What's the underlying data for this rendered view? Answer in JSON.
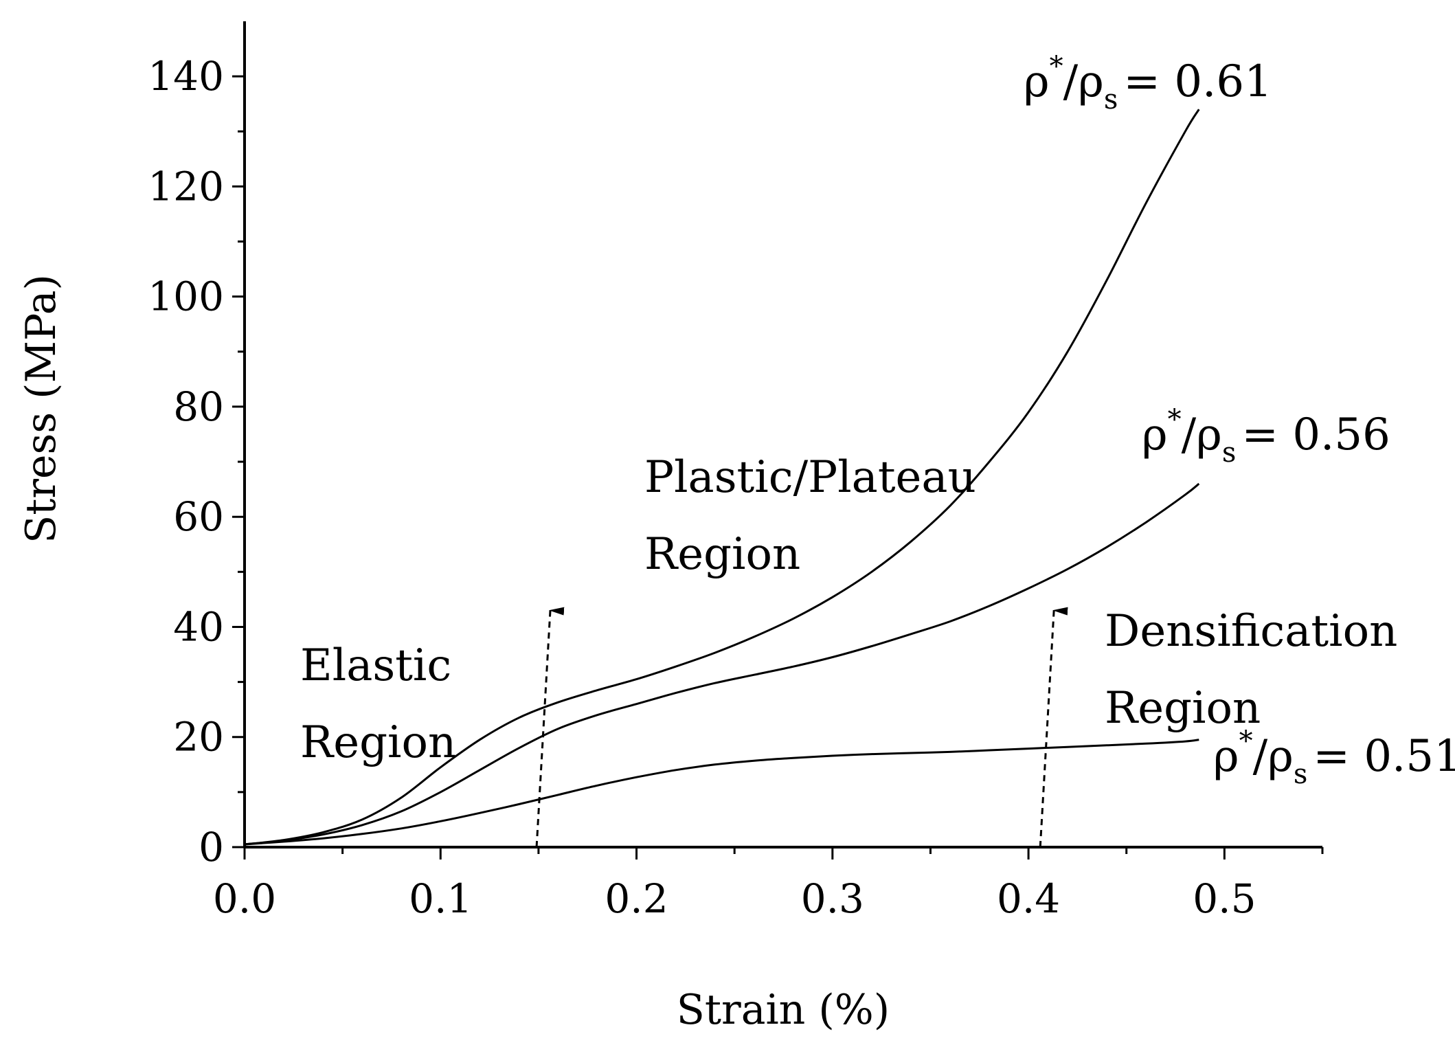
{
  "chart_data": {
    "type": "line",
    "xlabel": "Strain (%)",
    "ylabel": "Stress (MPa)",
    "xlim": [
      0,
      0.55
    ],
    "ylim": [
      0,
      150
    ],
    "x_ticks": [
      0.0,
      0.1,
      0.2,
      0.3,
      0.4,
      0.5
    ],
    "x_tick_labels": [
      "0.0",
      "0.1",
      "0.2",
      "0.3",
      "0.4",
      "0.5"
    ],
    "y_ticks": [
      0,
      20,
      40,
      60,
      80,
      100,
      120,
      140
    ],
    "y_tick_labels": [
      "0",
      "20",
      "40",
      "60",
      "80",
      "100",
      "120",
      "140"
    ],
    "grid": false,
    "legend": "none",
    "series": [
      {
        "label": {
          "base": "ρ",
          "sup": "*",
          "mid": "/ρ",
          "sub": "s",
          "value": "= 0.61"
        },
        "x": [
          0.0,
          0.02,
          0.04,
          0.06,
          0.08,
          0.1,
          0.12,
          0.14,
          0.16,
          0.18,
          0.2,
          0.22,
          0.24,
          0.26,
          0.28,
          0.3,
          0.32,
          0.34,
          0.36,
          0.38,
          0.4,
          0.42,
          0.44,
          0.46,
          0.48,
          0.487
        ],
        "y": [
          0.5,
          1.3,
          2.7,
          5.0,
          9.0,
          14.5,
          19.5,
          23.5,
          26.3,
          28.5,
          30.5,
          32.8,
          35.3,
          38.2,
          41.5,
          45.4,
          50.0,
          55.5,
          62.0,
          70.0,
          79.0,
          90.0,
          103.0,
          117.0,
          130.0,
          134.0
        ]
      },
      {
        "label": {
          "base": "ρ",
          "sup": "*",
          "mid": "/ρ",
          "sub": "s",
          "value": "= 0.56"
        },
        "x": [
          0.0,
          0.02,
          0.04,
          0.06,
          0.08,
          0.1,
          0.12,
          0.14,
          0.16,
          0.18,
          0.2,
          0.22,
          0.24,
          0.26,
          0.28,
          0.3,
          0.32,
          0.34,
          0.36,
          0.38,
          0.4,
          0.42,
          0.44,
          0.46,
          0.48,
          0.487
        ],
        "y": [
          0.5,
          1.2,
          2.3,
          4.0,
          6.5,
          10.0,
          14.0,
          18.0,
          21.5,
          24.0,
          26.0,
          28.0,
          29.8,
          31.3,
          32.8,
          34.5,
          36.5,
          38.7,
          41.0,
          43.8,
          47.0,
          50.5,
          54.5,
          59.0,
          64.0,
          66.0
        ]
      },
      {
        "label": {
          "base": "ρ",
          "sup": "*",
          "mid": "/ρ",
          "sub": "s",
          "value": "= 0.51"
        },
        "x": [
          0.0,
          0.02,
          0.04,
          0.06,
          0.08,
          0.1,
          0.12,
          0.14,
          0.16,
          0.18,
          0.2,
          0.22,
          0.24,
          0.26,
          0.28,
          0.3,
          0.32,
          0.34,
          0.36,
          0.38,
          0.4,
          0.42,
          0.44,
          0.46,
          0.48,
          0.487
        ],
        "y": [
          0.5,
          1.0,
          1.6,
          2.4,
          3.4,
          4.7,
          6.2,
          7.8,
          9.5,
          11.2,
          12.7,
          14.0,
          15.0,
          15.7,
          16.2,
          16.6,
          16.9,
          17.1,
          17.3,
          17.6,
          17.9,
          18.2,
          18.5,
          18.8,
          19.2,
          19.5
        ]
      }
    ],
    "annotations": [
      {
        "lines": [
          "Elastic",
          "Region"
        ]
      },
      {
        "lines": [
          "Plastic/Plateau",
          "Region"
        ]
      },
      {
        "lines": [
          "Densification",
          "Region"
        ]
      }
    ],
    "arrows": [
      {
        "from": [
          0.149,
          0
        ],
        "to": [
          0.156,
          43
        ]
      },
      {
        "from": [
          0.406,
          0
        ],
        "to": [
          0.413,
          43
        ]
      }
    ]
  }
}
